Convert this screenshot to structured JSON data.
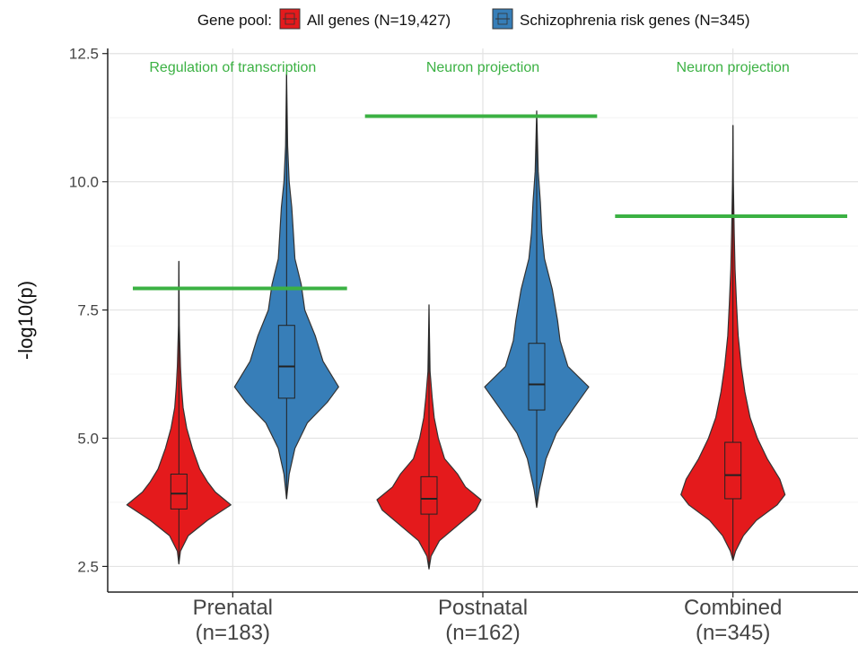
{
  "chart_data": {
    "type": "violin",
    "ylabel": "-log10(p)",
    "xlabel": "",
    "ylim": [
      2.0,
      12.6
    ],
    "yticks": [
      "2.5",
      "5.0",
      "7.5",
      "10.0",
      "12.5"
    ],
    "yticks_values": [
      2.5,
      5.0,
      7.5,
      10.0,
      12.5
    ],
    "grid": true,
    "legend": {
      "title": "Gene pool:",
      "position": "top",
      "entries": [
        {
          "label": "All genes (N=19,427)",
          "color": "#E41A1C"
        },
        {
          "label": "Schizophrenia risk genes (N=345)",
          "color": "#377EB8"
        }
      ]
    },
    "categories": [
      {
        "name": "Prenatal",
        "sub": "(n=183)"
      },
      {
        "name": "Postnatal",
        "sub": "(n=162)"
      },
      {
        "name": "Combined",
        "sub": "(n=345)"
      }
    ],
    "annotations": [
      {
        "category": "Prenatal",
        "text": "Regulation of transcription",
        "threshold": 7.92
      },
      {
        "category": "Postnatal",
        "text": "Neuron projection",
        "threshold": 11.28
      },
      {
        "category": "Combined",
        "text": "Neuron projection",
        "threshold": 9.33
      }
    ],
    "annotation_color": "#3BB143",
    "series": [
      {
        "group": "All genes (N=19,427)",
        "category": "Prenatal",
        "color": "#E41A1C",
        "min": 2.55,
        "q1": 3.62,
        "median": 3.92,
        "q3": 4.3,
        "max": 8.45,
        "density": [
          [
            2.55,
            0
          ],
          [
            2.8,
            0.03
          ],
          [
            3.1,
            0.18
          ],
          [
            3.4,
            0.55
          ],
          [
            3.7,
            1.0
          ],
          [
            3.95,
            0.7
          ],
          [
            4.15,
            0.55
          ],
          [
            4.4,
            0.4
          ],
          [
            4.8,
            0.26
          ],
          [
            5.2,
            0.15
          ],
          [
            5.6,
            0.08
          ],
          [
            6.0,
            0.05
          ],
          [
            6.4,
            0.03
          ],
          [
            7.2,
            0.008
          ],
          [
            8.45,
            0
          ]
        ]
      },
      {
        "group": "Schizophrenia risk genes (N=345)",
        "category": "Prenatal",
        "color": "#377EB8",
        "min": 3.82,
        "q1": 5.78,
        "median": 6.4,
        "q3": 7.2,
        "max": 12.1,
        "density": [
          [
            3.82,
            0
          ],
          [
            4.3,
            0.05
          ],
          [
            4.8,
            0.16
          ],
          [
            5.3,
            0.4
          ],
          [
            5.7,
            0.78
          ],
          [
            6.0,
            1.0
          ],
          [
            6.5,
            0.7
          ],
          [
            7.0,
            0.55
          ],
          [
            7.5,
            0.35
          ],
          [
            8.0,
            0.28
          ],
          [
            8.5,
            0.16
          ],
          [
            9.0,
            0.13
          ],
          [
            9.5,
            0.1
          ],
          [
            10.0,
            0.05
          ],
          [
            10.7,
            0.02
          ],
          [
            12.1,
            0
          ]
        ]
      },
      {
        "group": "All genes (N=19,427)",
        "category": "Postnatal",
        "color": "#E41A1C",
        "min": 2.45,
        "q1": 3.52,
        "median": 3.82,
        "q3": 4.25,
        "max": 7.6,
        "density": [
          [
            2.45,
            0
          ],
          [
            2.7,
            0.04
          ],
          [
            3.0,
            0.2
          ],
          [
            3.3,
            0.55
          ],
          [
            3.6,
            0.9
          ],
          [
            3.8,
            1.0
          ],
          [
            4.05,
            0.7
          ],
          [
            4.3,
            0.55
          ],
          [
            4.6,
            0.3
          ],
          [
            5.0,
            0.18
          ],
          [
            5.4,
            0.1
          ],
          [
            5.8,
            0.06
          ],
          [
            6.3,
            0.02
          ],
          [
            7.0,
            0.008
          ],
          [
            7.6,
            0
          ]
        ]
      },
      {
        "group": "Schizophrenia risk genes (N=345)",
        "category": "Postnatal",
        "color": "#377EB8",
        "min": 3.65,
        "q1": 5.55,
        "median": 6.05,
        "q3": 6.85,
        "max": 11.38,
        "density": [
          [
            3.65,
            0
          ],
          [
            4.0,
            0.05
          ],
          [
            4.6,
            0.18
          ],
          [
            5.1,
            0.38
          ],
          [
            5.6,
            0.72
          ],
          [
            6.0,
            1.0
          ],
          [
            6.4,
            0.6
          ],
          [
            6.9,
            0.45
          ],
          [
            7.3,
            0.4
          ],
          [
            7.9,
            0.3
          ],
          [
            8.5,
            0.15
          ],
          [
            9.0,
            0.1
          ],
          [
            9.6,
            0.07
          ],
          [
            10.2,
            0.03
          ],
          [
            11.38,
            0
          ]
        ]
      },
      {
        "group": "All genes (N=19,427)",
        "category": "Combined",
        "color": "#E41A1C",
        "min": 2.62,
        "q1": 3.82,
        "median": 4.28,
        "q3": 4.92,
        "max": 11.1,
        "density": [
          [
            2.62,
            0
          ],
          [
            2.8,
            0.05
          ],
          [
            3.1,
            0.2
          ],
          [
            3.4,
            0.45
          ],
          [
            3.7,
            0.85
          ],
          [
            3.9,
            1.0
          ],
          [
            4.2,
            0.9
          ],
          [
            4.6,
            0.66
          ],
          [
            5.0,
            0.47
          ],
          [
            5.4,
            0.33
          ],
          [
            5.9,
            0.23
          ],
          [
            6.4,
            0.16
          ],
          [
            7.0,
            0.1
          ],
          [
            7.6,
            0.07
          ],
          [
            8.3,
            0.04
          ],
          [
            9.0,
            0.025
          ],
          [
            10.0,
            0.008
          ],
          [
            11.1,
            0
          ]
        ]
      }
    ]
  }
}
